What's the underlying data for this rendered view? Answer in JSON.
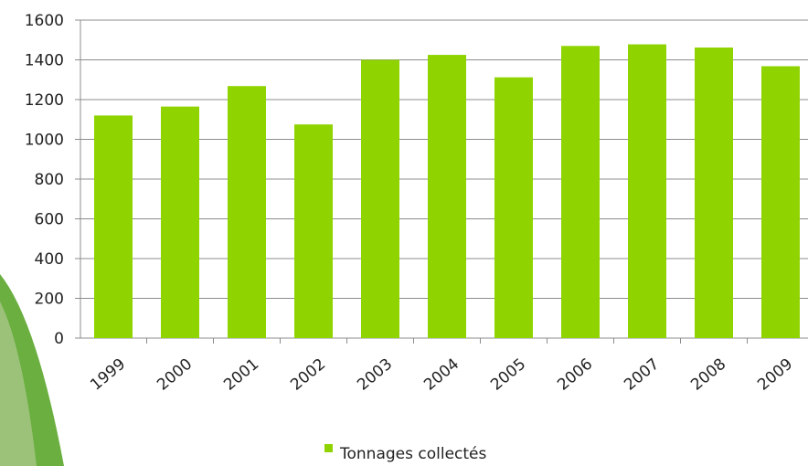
{
  "chart_data": {
    "type": "bar",
    "categories": [
      "1999",
      "2000",
      "2001",
      "2002",
      "2003",
      "2004",
      "2005",
      "2006",
      "2007",
      "2008",
      "2009"
    ],
    "series": [
      {
        "name": "Tonnages collectés",
        "values": [
          1120,
          1165,
          1268,
          1075,
          1400,
          1425,
          1312,
          1470,
          1478,
          1462,
          1368
        ]
      }
    ],
    "ylim": [
      0,
      1600
    ],
    "yticks": [
      0,
      200,
      400,
      600,
      800,
      1000,
      1200,
      1400,
      1600
    ],
    "grid": true,
    "legend_position": "bottom-center",
    "bar_color": "#8fd400",
    "grid_color": "#8c8c8c",
    "decoration_color": "#5aa62a"
  }
}
